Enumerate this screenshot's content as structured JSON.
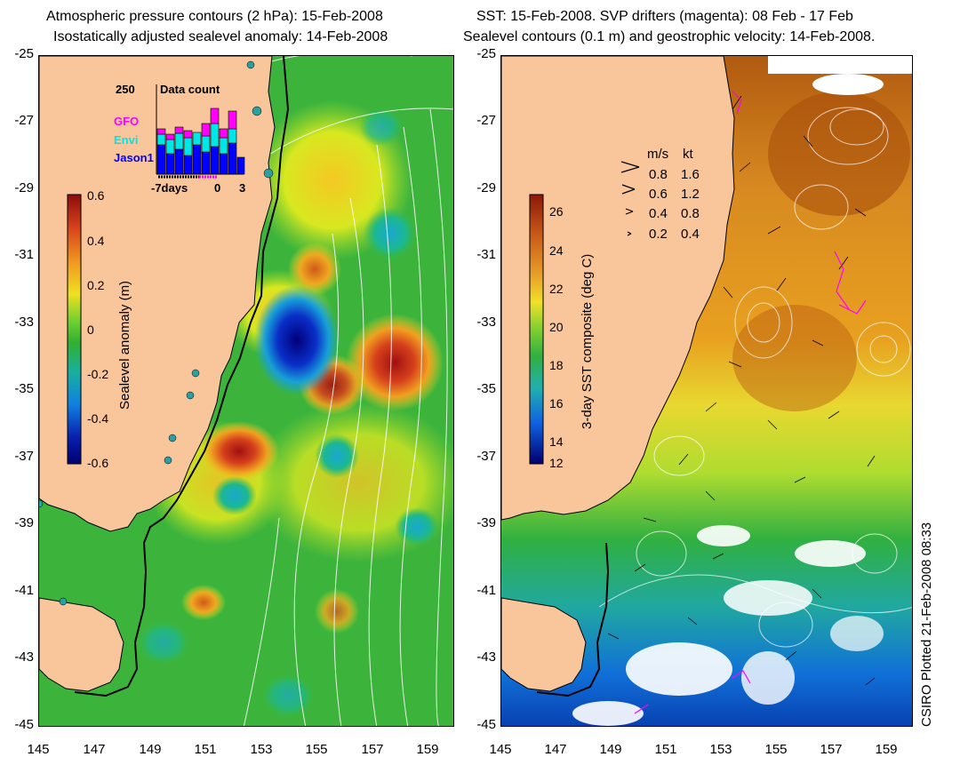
{
  "left_title": {
    "line1": "Atmospheric pressure contours (2 hPa): 15-Feb-2008",
    "line2": "Isostatically adjusted sealevel anomaly: 14-Feb-2008"
  },
  "right_title": {
    "line1": "SST: 15-Feb-2008. SVP drifters (magenta): 08 Feb - 17 Feb",
    "line2": "Sealevel contours (0.1 m) and geostrophic velocity: 14-Feb-2008."
  },
  "y_axis": [
    "-25",
    "-27",
    "-29",
    "-31",
    "-33",
    "-35",
    "-37",
    "-39",
    "-41",
    "-43",
    "-45"
  ],
  "x_axis": [
    "145",
    "147",
    "149",
    "151",
    "153",
    "155",
    "157",
    "159"
  ],
  "left_colorbar": {
    "title": "Sealevel anomaly (m)",
    "labels": [
      "0.6",
      "0.4",
      "0.2",
      "0",
      "-0.2",
      "-0.4",
      "-0.6"
    ]
  },
  "right_colorbar": {
    "title": "3-day SST composite (deg C)",
    "labels": [
      "26",
      "24",
      "22",
      "20",
      "18",
      "16",
      "14",
      "12"
    ]
  },
  "data_count": {
    "max_label": "250",
    "title": "Data count",
    "legend": [
      "GFO",
      "Envi",
      "Jason1"
    ],
    "x_labels": [
      "-7days",
      "0",
      "3"
    ]
  },
  "velocity_legend": {
    "header_ms": "m/s",
    "header_kt": "kt",
    "rows": [
      {
        "ms": "0.8",
        "kt": "1.6"
      },
      {
        "ms": "0.6",
        "kt": "1.2"
      },
      {
        "ms": "0.4",
        "kt": "0.8"
      },
      {
        "ms": "0.2",
        "kt": "0.4"
      }
    ]
  },
  "credit": "CSIRO Plotted 21-Feb-2008 08:33",
  "colors": {
    "land": "#f9c59a",
    "gfo": "#ff00ff",
    "envi": "#00e5e5",
    "jason1": "#0000ff"
  }
}
